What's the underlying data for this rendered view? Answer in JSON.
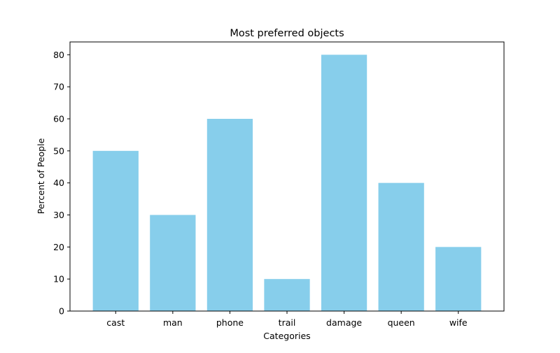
{
  "chart_data": {
    "type": "bar",
    "title": "Most preferred objects",
    "xlabel": "Categories",
    "ylabel": "Percent of People",
    "categories": [
      "cast",
      "man",
      "phone",
      "trail",
      "damage",
      "queen",
      "wife"
    ],
    "values": [
      50,
      30,
      60,
      10,
      80,
      40,
      20
    ],
    "ylim": [
      0,
      84
    ],
    "yticks": [
      0,
      10,
      20,
      30,
      40,
      50,
      60,
      70,
      80
    ],
    "bar_color": "#87CEEB",
    "grid": false,
    "legend": "none"
  }
}
